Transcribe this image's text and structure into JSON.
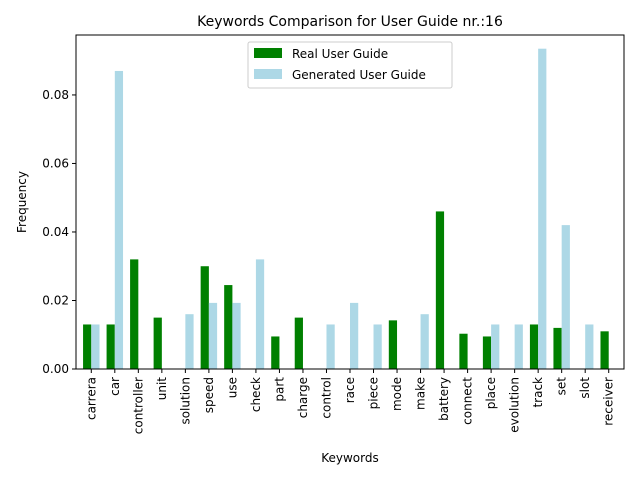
{
  "chart_data": {
    "type": "bar",
    "title": "Keywords Comparison for User Guide nr.:16",
    "xlabel": "Keywords",
    "ylabel": "Frequency",
    "ylim": [
      0,
      0.0975
    ],
    "yticks": [
      "0.00",
      "0.02",
      "0.04",
      "0.06",
      "0.08"
    ],
    "ytick_values": [
      0,
      0.02,
      0.04,
      0.06,
      0.08
    ],
    "legend_position": "top-center",
    "grid": false,
    "categories": [
      "carrera",
      "car",
      "controller",
      "unit",
      "solution",
      "speed",
      "use",
      "check",
      "part",
      "charge",
      "control",
      "race",
      "piece",
      "mode",
      "make",
      "battery",
      "connect",
      "place",
      "evolution",
      "track",
      "set",
      "slot",
      "receiver"
    ],
    "series": [
      {
        "name": "Real User Guide",
        "color": "#008000",
        "values": [
          0.013,
          0.013,
          0.032,
          0.015,
          0,
          0.03,
          0.0245,
          0,
          0.0095,
          0.015,
          0,
          0,
          0,
          0.0142,
          0,
          0.046,
          0.0103,
          0.0095,
          0,
          0.013,
          0.012,
          0,
          0.011
        ]
      },
      {
        "name": "Generated User Guide",
        "color": "#add8e6",
        "values": [
          0.013,
          0.087,
          0,
          0,
          0.016,
          0.0193,
          0.0193,
          0.032,
          0,
          0,
          0.013,
          0.0193,
          0.013,
          0,
          0.016,
          0,
          0,
          0.013,
          0.013,
          0.0935,
          0.042,
          0.013,
          0
        ]
      }
    ]
  }
}
